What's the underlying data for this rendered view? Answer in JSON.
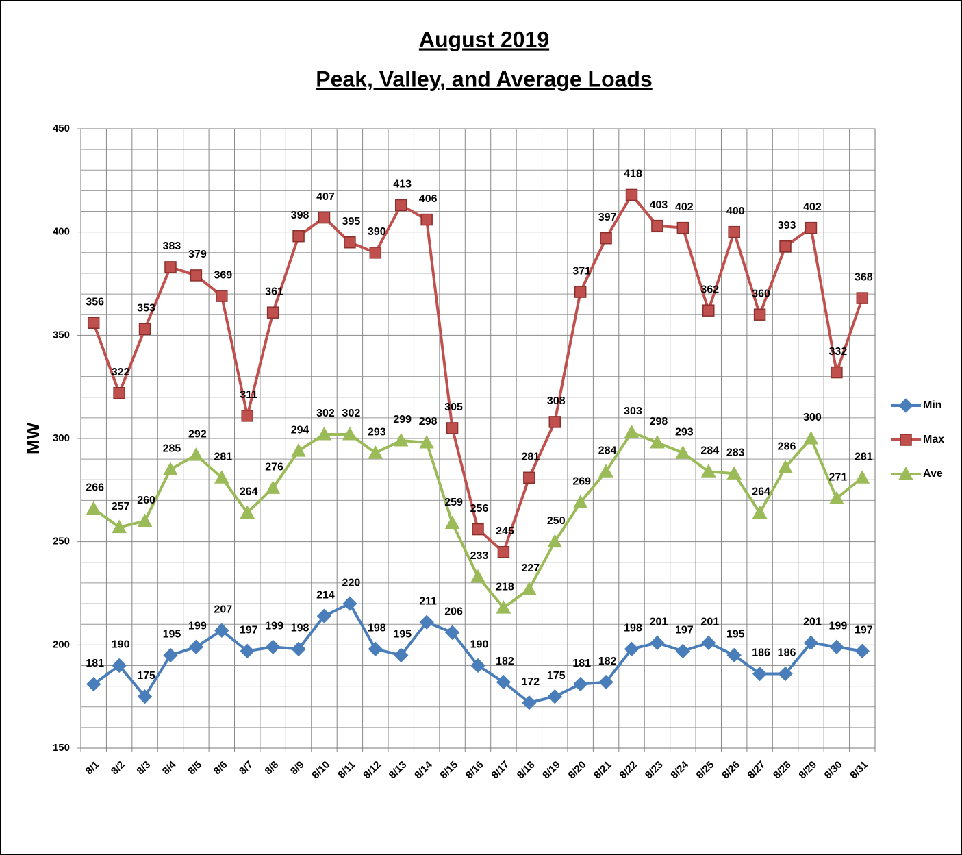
{
  "chart_data": {
    "type": "line",
    "title": "August 2019",
    "subtitle": "Peak, Valley, and Average Loads",
    "y_label": "MW",
    "categories": [
      "8/1",
      "8/2",
      "8/3",
      "8/4",
      "8/5",
      "8/6",
      "8/7",
      "8/8",
      "8/9",
      "8/10",
      "8/11",
      "8/12",
      "8/13",
      "8/14",
      "8/15",
      "8/16",
      "8/17",
      "8/18",
      "8/19",
      "8/20",
      "8/21",
      "8/22",
      "8/23",
      "8/24",
      "8/25",
      "8/26",
      "8/27",
      "8/28",
      "8/29",
      "8/30",
      "8/31"
    ],
    "series": [
      {
        "name": "Min",
        "color": "#4a7ebb",
        "marker": "diamond",
        "values": [
          181,
          190,
          175,
          195,
          199,
          207,
          197,
          199,
          198,
          214,
          220,
          198,
          195,
          211,
          206,
          190,
          182,
          172,
          175,
          181,
          182,
          198,
          201,
          197,
          201,
          195,
          186,
          186,
          201,
          199,
          197
        ]
      },
      {
        "name": "Max",
        "color": "#c0504d",
        "marker": "square",
        "values": [
          356,
          322,
          353,
          383,
          379,
          369,
          311,
          361,
          398,
          407,
          395,
          390,
          413,
          406,
          305,
          256,
          245,
          281,
          308,
          371,
          397,
          418,
          403,
          402,
          362,
          400,
          360,
          393,
          402,
          332,
          368
        ]
      },
      {
        "name": "Ave",
        "color": "#9bbb59",
        "marker": "triangle",
        "values": [
          266,
          257,
          260,
          285,
          292,
          281,
          264,
          276,
          294,
          302,
          302,
          293,
          299,
          298,
          259,
          233,
          218,
          227,
          250,
          269,
          284,
          303,
          298,
          293,
          284,
          283,
          264,
          286,
          300,
          271,
          281
        ]
      }
    ],
    "ylim": [
      150,
      450
    ],
    "yticks": [
      150,
      200,
      250,
      300,
      350,
      400,
      450
    ],
    "grid": true,
    "legend": "right"
  }
}
